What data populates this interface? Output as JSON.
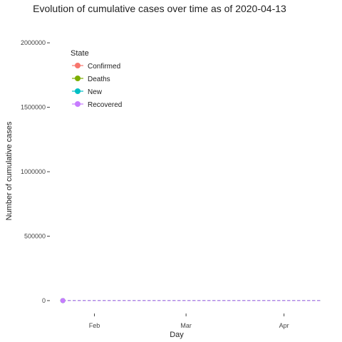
{
  "chart_data": {
    "type": "line",
    "title": "Evolution of cumulative cases over time as of  2020-04-13",
    "xlabel": "Day",
    "ylabel": "Number of cumulative cases",
    "x_ticks": [
      "Feb",
      "Mar",
      "Apr"
    ],
    "x_tick_dates": [
      "2020-02-01",
      "2020-03-01",
      "2020-04-01"
    ],
    "x_range": [
      "2020-01-22",
      "2020-04-13"
    ],
    "ylim": [
      0,
      2000000
    ],
    "y_ticks": [
      0,
      500000,
      1000000,
      1500000,
      2000000
    ],
    "y_tick_labels": [
      "0",
      "500000",
      "1000000",
      "1500000",
      "2000000"
    ],
    "grid": false,
    "legend_title": "State",
    "legend_placement": "top-left",
    "series": [
      {
        "name": "Confirmed",
        "color": "#F8766D",
        "x": [
          "2020-01-22",
          "2020-04-13"
        ],
        "y": [
          0,
          0
        ]
      },
      {
        "name": "Deaths",
        "color": "#7CAE00",
        "x": [
          "2020-01-22",
          "2020-04-13"
        ],
        "y": [
          0,
          0
        ]
      },
      {
        "name": "New",
        "color": "#00BFC4",
        "x": [
          "2020-01-22",
          "2020-04-13"
        ],
        "y": [
          0,
          0
        ]
      },
      {
        "name": "Recovered",
        "color": "#C77CFF",
        "x": [
          "2020-01-22",
          "2020-04-13"
        ],
        "y": [
          0,
          0
        ]
      }
    ]
  }
}
